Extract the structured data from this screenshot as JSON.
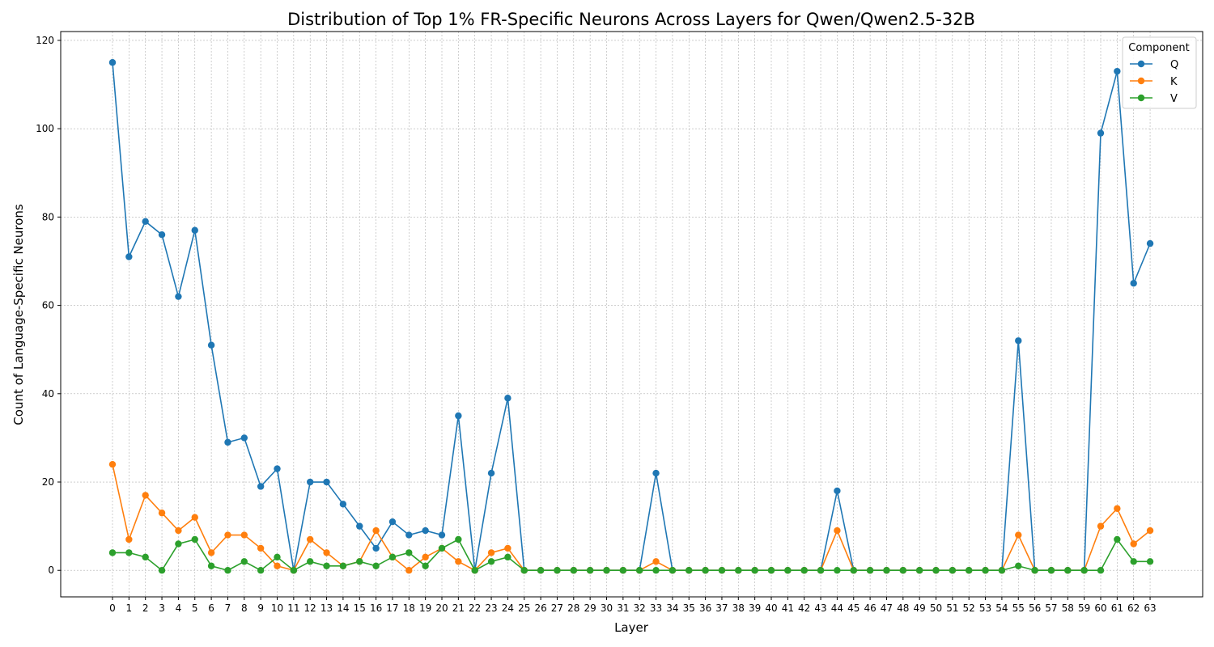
{
  "chart_data": {
    "type": "line",
    "title": "Distribution of Top 1% FR-Specific Neurons Across Layers for Qwen/Qwen2.5-32B",
    "xlabel": "Layer",
    "ylabel": "Count of Language-Specific Neurons",
    "x": [
      0,
      1,
      2,
      3,
      4,
      5,
      6,
      7,
      8,
      9,
      10,
      11,
      12,
      13,
      14,
      15,
      16,
      17,
      18,
      19,
      20,
      21,
      22,
      23,
      24,
      25,
      26,
      27,
      28,
      29,
      30,
      31,
      32,
      33,
      34,
      35,
      36,
      37,
      38,
      39,
      40,
      41,
      42,
      43,
      44,
      45,
      46,
      47,
      48,
      49,
      50,
      51,
      52,
      53,
      54,
      55,
      56,
      57,
      58,
      59,
      60,
      61,
      62,
      63
    ],
    "ylim": [
      -6,
      122
    ],
    "yticks": [
      0,
      20,
      40,
      60,
      80,
      100,
      120
    ],
    "grid": true,
    "legend": {
      "title": "Component",
      "placement": "top-right"
    },
    "series": [
      {
        "name": "Q",
        "color": "#1f77b4",
        "values": [
          115,
          71,
          79,
          76,
          62,
          77,
          51,
          29,
          30,
          19,
          23,
          0,
          20,
          20,
          15,
          10,
          5,
          11,
          8,
          9,
          8,
          35,
          0,
          22,
          39,
          0,
          0,
          0,
          0,
          0,
          0,
          0,
          0,
          22,
          0,
          0,
          0,
          0,
          0,
          0,
          0,
          0,
          0,
          0,
          18,
          0,
          0,
          0,
          0,
          0,
          0,
          0,
          0,
          0,
          0,
          52,
          0,
          0,
          0,
          0,
          99,
          113,
          65,
          74
        ]
      },
      {
        "name": "K",
        "color": "#ff7f0e",
        "values": [
          24,
          7,
          17,
          13,
          9,
          12,
          4,
          8,
          8,
          5,
          1,
          0,
          7,
          4,
          1,
          2,
          9,
          3,
          0,
          3,
          5,
          2,
          0,
          4,
          5,
          0,
          0,
          0,
          0,
          0,
          0,
          0,
          0,
          2,
          0,
          0,
          0,
          0,
          0,
          0,
          0,
          0,
          0,
          0,
          9,
          0,
          0,
          0,
          0,
          0,
          0,
          0,
          0,
          0,
          0,
          8,
          0,
          0,
          0,
          0,
          10,
          14,
          6,
          9
        ]
      },
      {
        "name": "V",
        "color": "#2ca02c",
        "values": [
          4,
          4,
          3,
          0,
          6,
          7,
          1,
          0,
          2,
          0,
          3,
          0,
          2,
          1,
          1,
          2,
          1,
          3,
          4,
          1,
          5,
          7,
          0,
          2,
          3,
          0,
          0,
          0,
          0,
          0,
          0,
          0,
          0,
          0,
          0,
          0,
          0,
          0,
          0,
          0,
          0,
          0,
          0,
          0,
          0,
          0,
          0,
          0,
          0,
          0,
          0,
          0,
          0,
          0,
          0,
          1,
          0,
          0,
          0,
          0,
          0,
          7,
          2,
          2
        ]
      }
    ]
  }
}
